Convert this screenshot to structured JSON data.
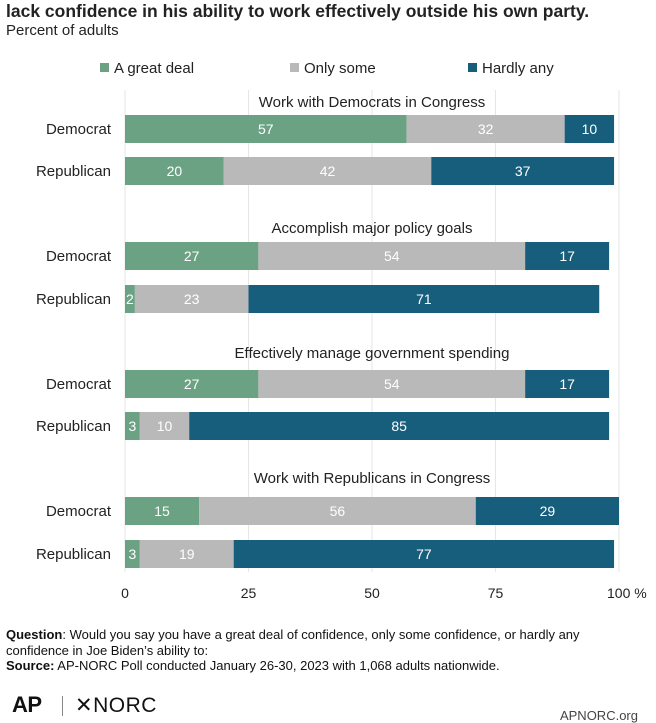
{
  "title": "lack confidence in his ability to work effectively outside his own party.",
  "subtitle": "Percent of adults",
  "colors": {
    "great": "#6aa283",
    "some": "#b9b9b9",
    "hardly": "#175d7c"
  },
  "chart_data": {
    "type": "bar",
    "orientation": "horizontal",
    "stacked": true,
    "legend": [
      "A great deal",
      "Only some",
      "Hardly any"
    ],
    "legend_position": "top",
    "xlim": [
      0,
      100
    ],
    "xticks": [
      "0",
      "25",
      "50",
      "75",
      "100 %"
    ],
    "panels": [
      {
        "title": "Work with Democrats in Congress",
        "rows": [
          {
            "label": "Democrat",
            "values": [
              57,
              32,
              10
            ]
          },
          {
            "label": "Republican",
            "values": [
              20,
              42,
              37
            ]
          }
        ]
      },
      {
        "title": "Accomplish major policy goals",
        "rows": [
          {
            "label": "Democrat",
            "values": [
              27,
              54,
              17
            ]
          },
          {
            "label": "Republican",
            "values": [
              2,
              23,
              71
            ]
          }
        ]
      },
      {
        "title": "Effectively manage government spending",
        "rows": [
          {
            "label": "Democrat",
            "values": [
              27,
              54,
              17
            ]
          },
          {
            "label": "Republican",
            "values": [
              3,
              10,
              85
            ]
          }
        ]
      },
      {
        "title": "Work with Republicans in Congress",
        "rows": [
          {
            "label": "Democrat",
            "values": [
              15,
              56,
              29
            ]
          },
          {
            "label": "Republican",
            "values": [
              3,
              19,
              77
            ]
          }
        ]
      }
    ]
  },
  "footnote": {
    "question_label": "Question",
    "question_text": ": Would you say you have a great deal of confidence, only some confidence, or hardly any confidence in Joe Biden’s ability to:",
    "source_label": "Source:",
    "source_text": " AP-NORC Poll conducted January 26-30, 2023 with 1,068 adults nationwide."
  },
  "logos": {
    "ap": "AP",
    "norc": "✕NORC",
    "site": "APNORC.org"
  }
}
